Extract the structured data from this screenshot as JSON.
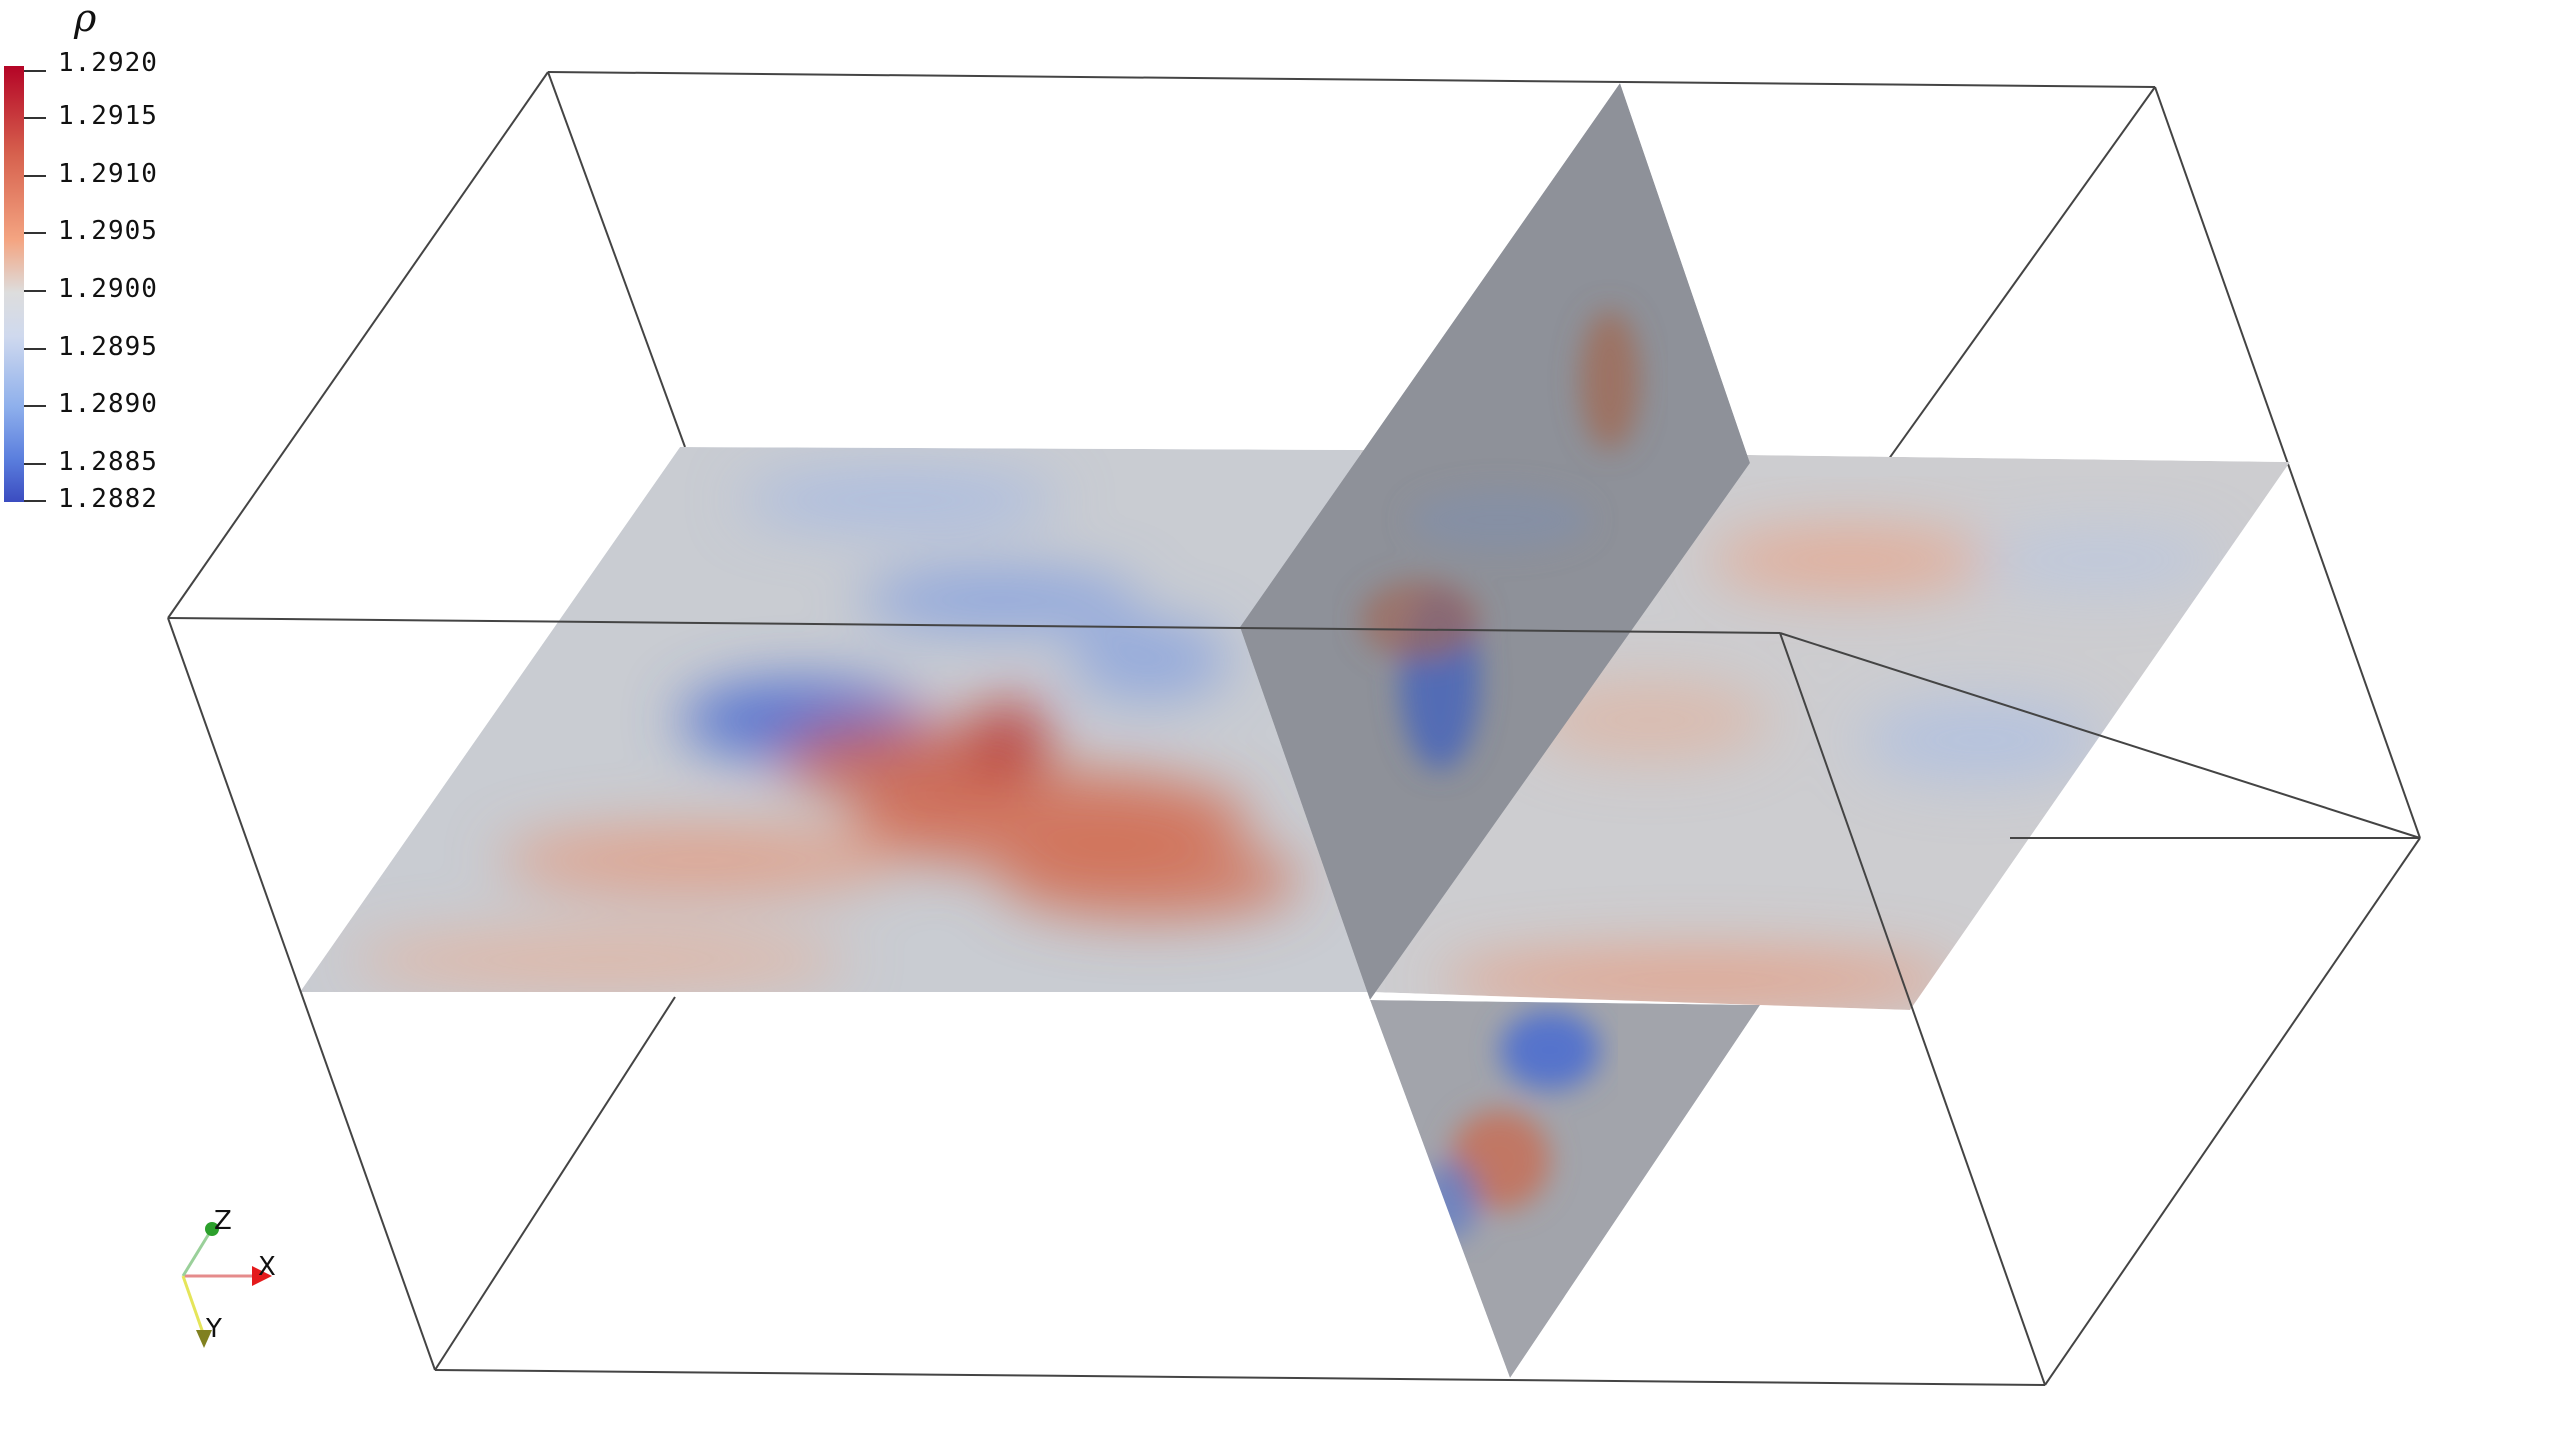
{
  "legend": {
    "title": "ρ",
    "labels": [
      "1.2920",
      "1.2915",
      "1.2910",
      "1.2905",
      "1.2900",
      "1.2895",
      "1.2890",
      "1.2885",
      "1.2882"
    ]
  },
  "orientation_axes": {
    "x": "X",
    "y": "Y",
    "z": "Z"
  },
  "colors": {
    "high": "#b40426",
    "mid": "#dddddd",
    "low": "#3b4cc0",
    "x_axis": "#e41a1c",
    "y_axis": "#e5e55a",
    "z_axis": "#2ca02c"
  }
}
